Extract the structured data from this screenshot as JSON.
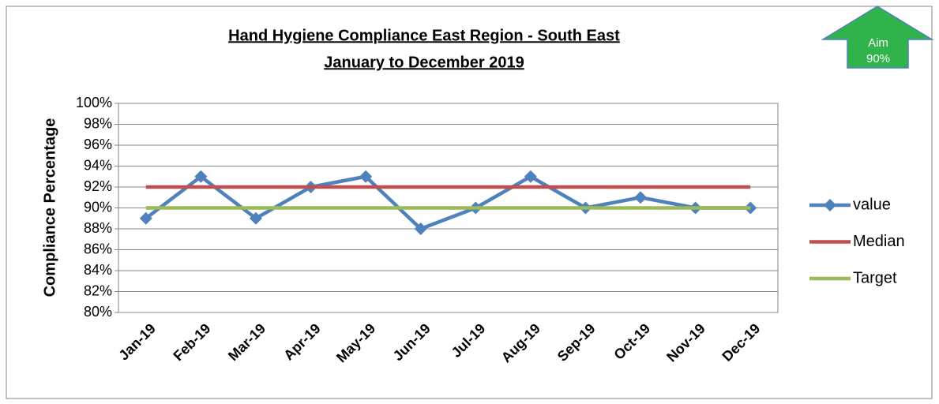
{
  "chart_data": {
    "type": "line",
    "title": "Hand Hygiene Compliance East Region - South East",
    "subtitle": "January to December 2019",
    "y_label": "Compliance Percentage",
    "annotations": [
      "Aim",
      "90%"
    ],
    "categories": [
      "Jan-19",
      "Feb-19",
      "Mar-19",
      "Apr-19",
      "May-19",
      "Jun-19",
      "Jul-19",
      "Aug-19",
      "Sep-19",
      "Oct-19",
      "Nov-19",
      "Dec-19"
    ],
    "series": [
      {
        "name": "value",
        "color": "#4f81bd",
        "marker": "diamond",
        "values": [
          89,
          93,
          89,
          92,
          93,
          88,
          90,
          93,
          90,
          91,
          90,
          90
        ]
      },
      {
        "name": "Median",
        "color": "#c0504d",
        "values": [
          92,
          92,
          92,
          92,
          92,
          92,
          92,
          92,
          92,
          92,
          92,
          92
        ]
      },
      {
        "name": "Target",
        "color": "#9bbb59",
        "values": [
          90,
          90,
          90,
          90,
          90,
          90,
          90,
          90,
          90,
          90,
          90,
          90
        ]
      }
    ],
    "ylim": [
      80,
      100
    ],
    "yticks": [
      {
        "value": 80,
        "label": "80%"
      },
      {
        "value": 82,
        "label": "82%"
      },
      {
        "value": 84,
        "label": "84%"
      },
      {
        "value": 86,
        "label": "86%"
      },
      {
        "value": 88,
        "label": "88%"
      },
      {
        "value": 90,
        "label": "90%"
      },
      {
        "value": 92,
        "label": "92%"
      },
      {
        "value": 94,
        "label": "94%"
      },
      {
        "value": 96,
        "label": "96%"
      },
      {
        "value": 98,
        "label": "98%"
      },
      {
        "value": 100,
        "label": "100%"
      }
    ],
    "grid": true,
    "legend": "right"
  }
}
